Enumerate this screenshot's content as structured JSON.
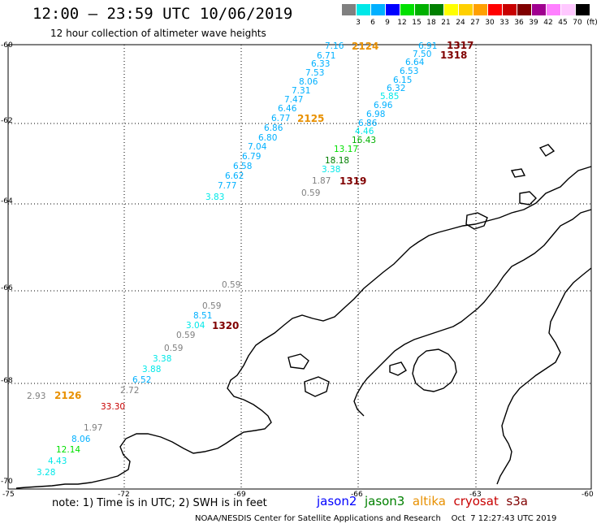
{
  "header": {
    "title": "12:00 – 23:59 UTC 10/06/2019",
    "subtitle": "12 hour collection of altimeter wave heights"
  },
  "legend": {
    "colors": [
      "#808080",
      "#00e8e8",
      "#00b0ff",
      "#0000ff",
      "#00e000",
      "#00b000",
      "#008000",
      "#ffff00",
      "#ffd000",
      "#ffa000",
      "#ff0000",
      "#c80000",
      "#800000",
      "#a00090",
      "#ff80ff",
      "#ffc8ff",
      "#000000"
    ],
    "labels": [
      "3",
      "6",
      "9",
      "12",
      "15",
      "18",
      "21",
      "24",
      "27",
      "30",
      "33",
      "36",
      "39",
      "42",
      "45",
      "70",
      "(ft)"
    ]
  },
  "axes": {
    "lat_labels": [
      "-60",
      "-62",
      "-64",
      "-66",
      "-68",
      "-70"
    ],
    "lon_labels": [
      "-75",
      "-72",
      "-69",
      "-66",
      "-63",
      "-60"
    ]
  },
  "passes": [
    {
      "id": "2124",
      "color": "#e89000"
    },
    {
      "id": "2125",
      "color": "#e89000"
    },
    {
      "id": "2126",
      "color": "#e89000"
    },
    {
      "id": "1317",
      "color": "#800000"
    },
    {
      "id": "1318",
      "color": "#800000"
    },
    {
      "id": "1319",
      "color": "#800000"
    },
    {
      "id": "1320",
      "color": "#800000"
    }
  ],
  "track_values": {
    "track_a": [
      "7.16",
      "6.71",
      "6.33",
      "7.53",
      "8.06",
      "7.31",
      "7.47",
      "6.46",
      "6.77",
      "6.86",
      "6.80",
      "7.04",
      "6.79",
      "6.58",
      "6.62",
      "7.77",
      "3.83"
    ],
    "track_b": [
      "6.91",
      "7.50",
      "6.64",
      "6.53",
      "6.15",
      "6.32",
      "5.85",
      "6.96",
      "6.98",
      "6.86",
      "4.46",
      "16.43",
      "13.17",
      "18.18",
      "3.38",
      "1.87",
      "0.59"
    ],
    "track_c": [
      "0.59",
      "0.59",
      "8.51",
      "3.04",
      "0.59",
      "0.59",
      "3.38",
      "3.88",
      "6.52",
      "2.72",
      "33.30",
      "2.93"
    ],
    "track_d": [
      "1.97",
      "8.06",
      "12.14",
      "4.43",
      "3.28"
    ]
  },
  "note": "note:  1) Time is in UTC;  2) SWH is in feet",
  "satellites": [
    {
      "name": "jason2",
      "color": "#0000ff"
    },
    {
      "name": "jason3",
      "color": "#008000"
    },
    {
      "name": "altika",
      "color": "#e89000"
    },
    {
      "name": "cryosat",
      "color": "#c80000"
    },
    {
      "name": "s3a",
      "color": "#800000"
    }
  ],
  "footer": {
    "credit": "NOAA/NESDIS Center for Satellite Applications and Research",
    "timestamp": "Oct  7 12:27:43 UTC 2019"
  }
}
